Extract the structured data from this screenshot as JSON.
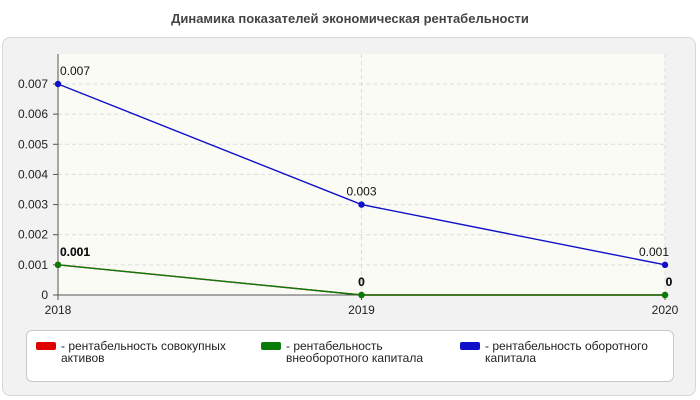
{
  "title": "Динамика показателей экономическая рентабельности",
  "chart_data": {
    "type": "line",
    "title": "Динамика показателей экономическая рентабельности",
    "x": [
      "2018",
      "2019",
      "2020"
    ],
    "ylim": [
      0,
      0.007
    ],
    "yticks": [
      "0",
      "0.001",
      "0.002",
      "0.003",
      "0.004",
      "0.005",
      "0.006",
      "0.007"
    ],
    "grid": true,
    "legend_position": "bottom",
    "series": [
      {
        "name": "- рентабельность совокупных активов",
        "color": "#e00000",
        "values": [
          0.001,
          0,
          0
        ],
        "labels": [
          "0.001",
          "0",
          "0"
        ]
      },
      {
        "name": "- рентабельность внеоборотного капитала",
        "color": "#0a7a0a",
        "values": [
          0.001,
          0,
          0
        ],
        "labels": [
          "0.001",
          "0",
          "0"
        ]
      },
      {
        "name": "- рентабельность оборотного капитала",
        "color": "#1010c8",
        "values": [
          0.007,
          0.003,
          0.001
        ],
        "labels": [
          "0.007",
          "0.003",
          "0.001"
        ]
      }
    ]
  }
}
